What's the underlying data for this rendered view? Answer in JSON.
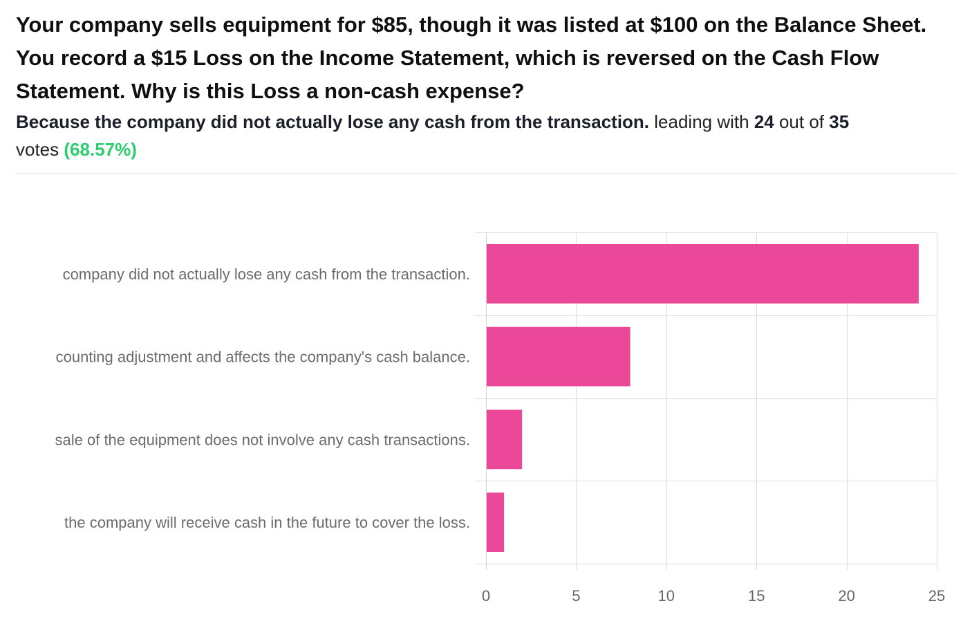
{
  "question": {
    "text": "Your company sells equipment for $85, though it was listed at $100 on the Balance Sheet. You record a $15 Loss on the Income Statement, which is reversed on the Cash Flow Statement. Why is this Loss a non-cash expense?"
  },
  "summary": {
    "answer": "Because the company did not actually lose any cash from the transaction.",
    "leading_with": "leading with",
    "votes_leading": "24",
    "out_of": "out of",
    "votes_total": "35",
    "votes_word": "votes",
    "percent": "(68.57%)"
  },
  "colors": {
    "bar": "#ec4899",
    "grid": "#dddddd",
    "percent": "#2ecc71"
  },
  "chart_data": {
    "type": "bar",
    "orientation": "horizontal",
    "categories": [
      "Because the company did not actually lose any cash from the transaction.",
      "Because it is an accounting adjustment and affects the company's cash balance.",
      "Because the sale of the equipment does not involve any cash transactions.",
      "Because the company will receive cash in the future to cover the loss."
    ],
    "visible_labels": [
      "company did not actually lose any cash from the transaction.",
      "counting adjustment and affects the company's cash balance.",
      "sale of the equipment does not involve any cash transactions.",
      "the company will receive cash in the future to cover the loss."
    ],
    "values": [
      24,
      8,
      2,
      1
    ],
    "xlim": [
      0,
      25
    ],
    "xticks": [
      0,
      5,
      10,
      15,
      20,
      25
    ],
    "title": "",
    "xlabel": "",
    "ylabel": "",
    "grid": true
  }
}
